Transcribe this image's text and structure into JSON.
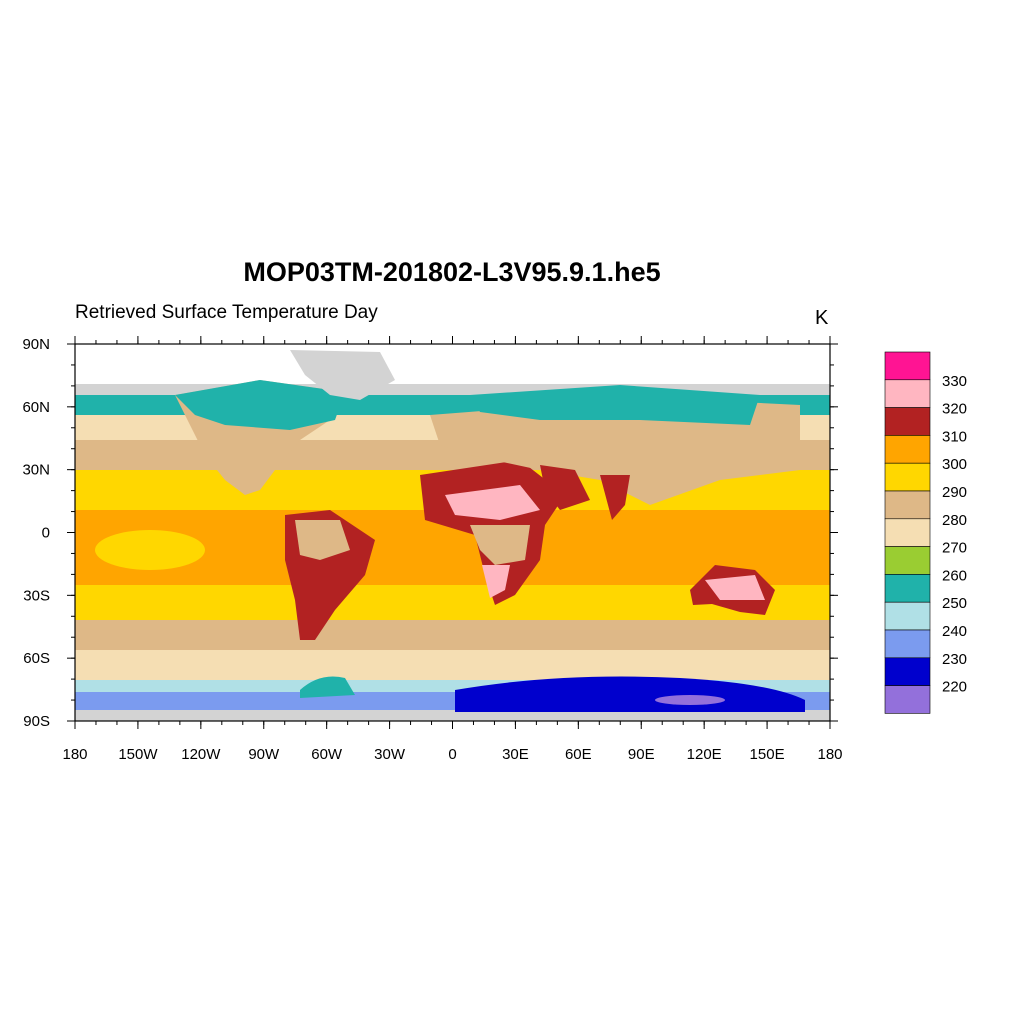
{
  "title": "MOP03TM-201802-L3V95.9.1.he5",
  "subtitle": "Retrieved Surface Temperature Day",
  "units": "K",
  "x_ticks": [
    "180",
    "150W",
    "120W",
    "90W",
    "60W",
    "30W",
    "0",
    "30E",
    "60E",
    "90E",
    "120E",
    "150E",
    "180"
  ],
  "y_ticks": [
    "90N",
    "60N",
    "30N",
    "0",
    "30S",
    "60S",
    "90S"
  ],
  "colorbar": {
    "labels": [
      "330",
      "320",
      "310",
      "300",
      "290",
      "280",
      "270",
      "260",
      "250",
      "240",
      "230",
      "220"
    ],
    "colors": [
      "#ff1493",
      "#ffb6c1",
      "#b22222",
      "#ffa500",
      "#ffd700",
      "#deb887",
      "#f5deb3",
      "#9acd32",
      "#20b2aa",
      "#b0e0e6",
      "#7b9bef",
      "#0000cd",
      "#9370db"
    ]
  },
  "map": {
    "projection": "cylindrical-equidistant",
    "lon_range": [
      -180,
      180
    ],
    "lat_range": [
      -90,
      90
    ],
    "missing_color": "#d3d3d3"
  }
}
